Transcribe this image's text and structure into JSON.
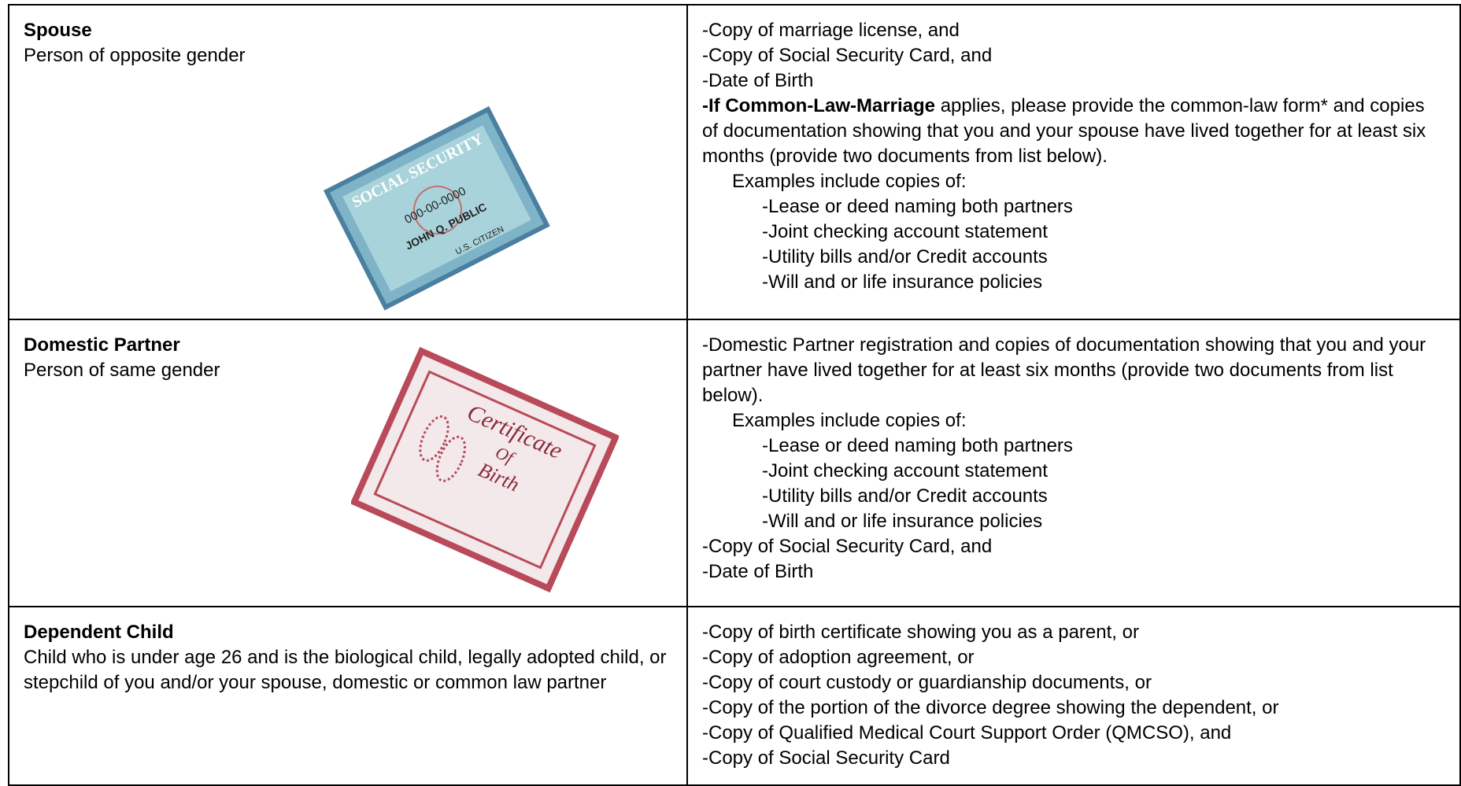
{
  "rows": [
    {
      "label": "Spouse",
      "description": "Person of opposite gender",
      "image": {
        "title": "SOCIAL SECURITY",
        "number": "000-00-0000",
        "name": "JOHN Q. PUBLIC",
        "status": "U.S. CITIZEN"
      },
      "requirements": [
        "-Copy of marriage license, and",
        "-Copy of Social Security Card, and",
        "-Date of Birth"
      ],
      "note": {
        "bold": "-If Common-Law-Marriage",
        "text": "applies, please provide the common-law form* and copies of documentation showing that you and your spouse have lived together for at least six months (provide two documents from list below)."
      },
      "examples": {
        "intro": "Examples include copies of:",
        "items": [
          "-Lease or deed naming both partners",
          "-Joint checking account statement",
          "-Utility bills and/or Credit accounts",
          "-Will and or life insurance policies"
        ]
      },
      "after": []
    },
    {
      "label": "Domestic Partner",
      "description": "Person of same gender",
      "image": {
        "title": "Certificate",
        "number": "Of",
        "name": "Birth"
      },
      "requirements": [
        "-Domestic Partner registration and copies of documentation showing that you and your partner have lived together for at least six months (provide two documents from list below)."
      ],
      "examples": {
        "intro": "Examples include copies of:",
        "items": [
          "-Lease or deed naming both partners",
          "-Joint checking account statement",
          "-Utility bills and/or Credit accounts",
          "-Will and or life insurance policies"
        ]
      },
      "after": [
        "-Copy of Social Security Card, and",
        "-Date of Birth"
      ]
    },
    {
      "label": "Dependent Child",
      "description": "Child who is under age 26 and is the biological child, legally adopted child, or stepchild of you and/or your spouse, domestic or common law partner",
      "requirements": [
        "-Copy of birth certificate showing you as a parent, or",
        "-Copy of adoption agreement, or",
        "-Copy of court custody or guardianship documents, or",
        "-Copy of the portion of the divorce degree showing the dependent, or",
        "-Copy of Qualified Medical Court Support Order (QMCSO), and",
        "-Copy of Social Security Card"
      ],
      "after": []
    }
  ]
}
